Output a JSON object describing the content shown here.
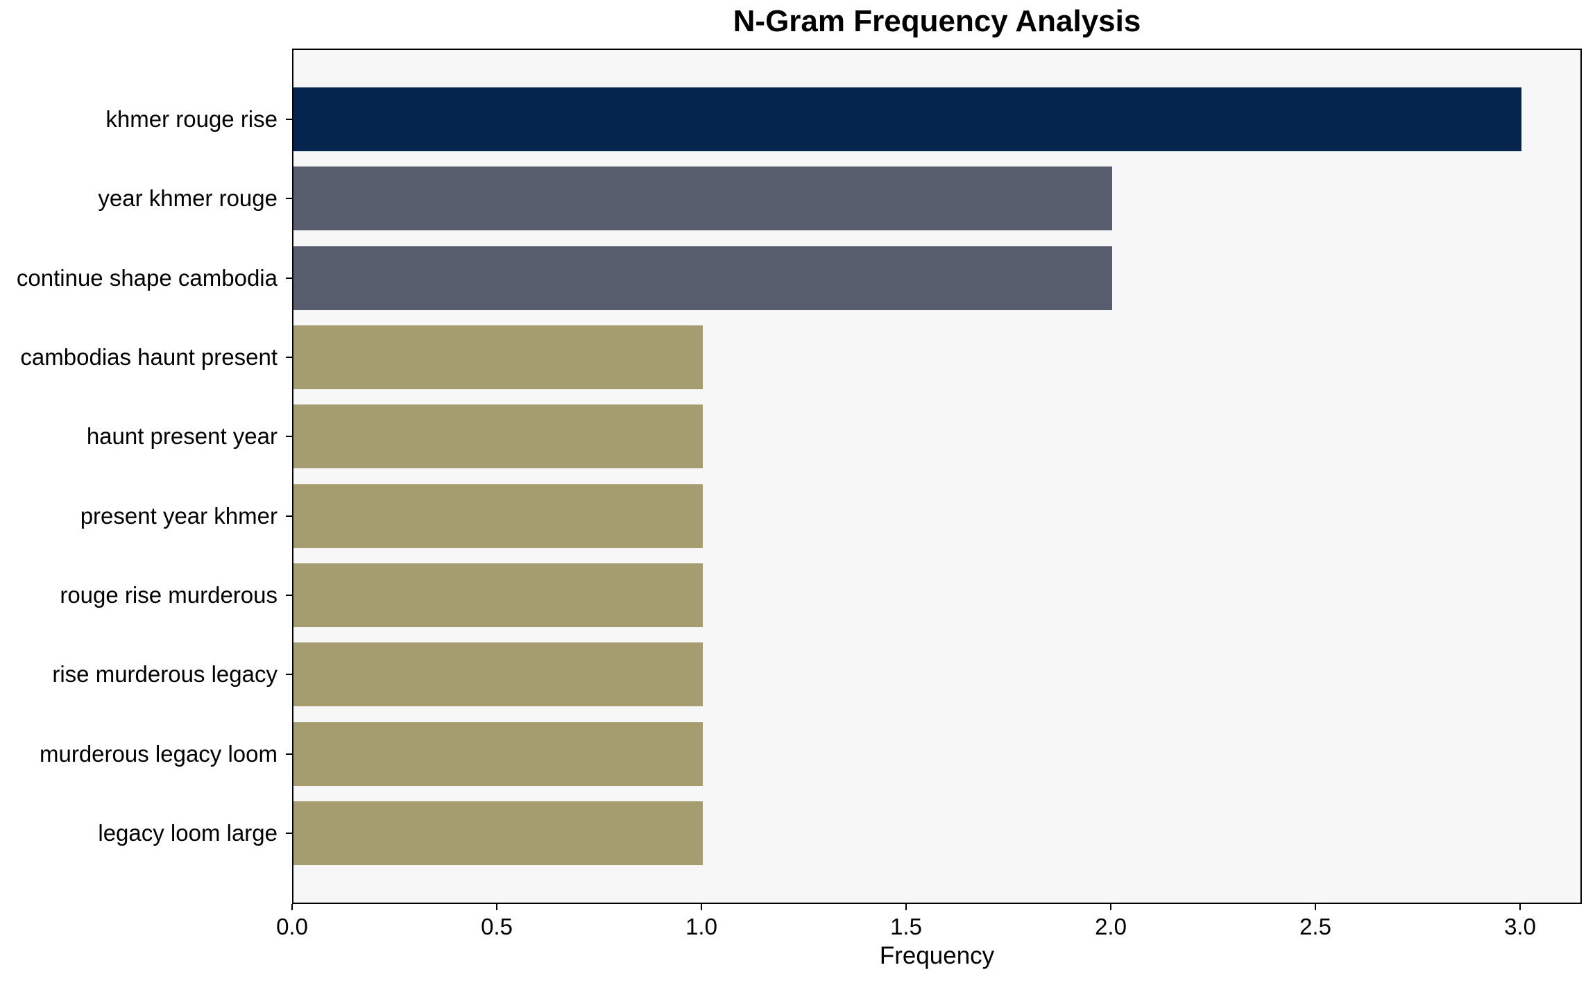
{
  "figure": {
    "title": "N-Gram Frequency Analysis",
    "xlabel": "Frequency",
    "plot_background": "#f7f7f7",
    "figure_background": "#ffffff",
    "spine_color": "#000000"
  },
  "chart_data": {
    "type": "bar",
    "orientation": "horizontal",
    "title": "N-Gram Frequency Analysis",
    "xlabel": "Frequency",
    "ylabel": "",
    "categories": [
      "khmer rouge rise",
      "year khmer rouge",
      "continue shape cambodia",
      "cambodias haunt present",
      "haunt present year",
      "present year khmer",
      "rouge rise murderous",
      "rise murderous legacy",
      "murderous legacy loom",
      "legacy loom large"
    ],
    "values": [
      3,
      2,
      2,
      1,
      1,
      1,
      1,
      1,
      1,
      1
    ],
    "bar_colors": [
      "#05244e",
      "#575d6d",
      "#575d6d",
      "#a59c70",
      "#a59c70",
      "#a59c70",
      "#a59c70",
      "#a59c70",
      "#a59c70",
      "#a59c70"
    ],
    "xlim": [
      0,
      3.15
    ],
    "xticks": [
      0,
      0.5,
      1,
      1.5,
      2,
      2.5,
      3
    ],
    "xtick_labels": [
      "0.0",
      "0.5",
      "1.0",
      "1.5",
      "2.0",
      "2.5",
      "3.0"
    ],
    "grid": false,
    "legend": null
  }
}
